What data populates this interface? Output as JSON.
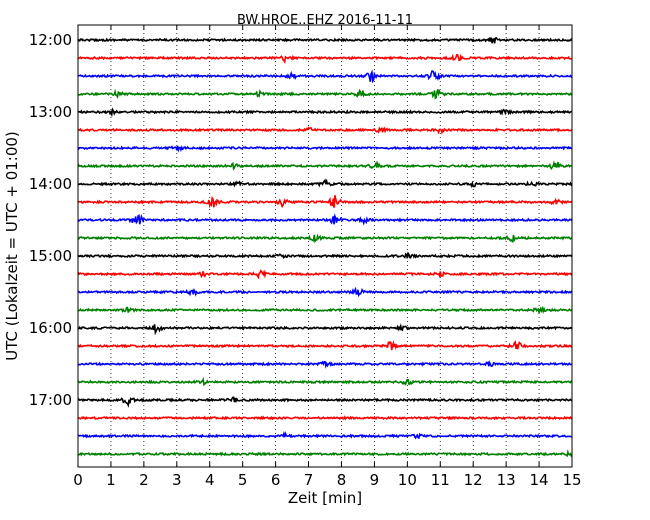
{
  "chart_data": {
    "type": "line",
    "title": "BW.HROE..EHZ 2016-11-11",
    "xlabel": "Zeit  [min]",
    "ylabel": "UTC (Lokalzeit = UTC + 01:00)",
    "xlim": [
      0,
      15
    ],
    "x_ticks": [
      "0",
      "1",
      "2",
      "3",
      "4",
      "5",
      "6",
      "7",
      "8",
      "9",
      "10",
      "11",
      "12",
      "13",
      "14",
      "15"
    ],
    "y_ticks": [
      {
        "label": "12:00",
        "trace": 0
      },
      {
        "label": "13:00",
        "trace": 4
      },
      {
        "label": "14:00",
        "trace": 8
      },
      {
        "label": "15:00",
        "trace": 12
      },
      {
        "label": "16:00",
        "trace": 16
      },
      {
        "label": "17:00",
        "trace": 20
      }
    ],
    "grid": "vertical dotted",
    "trace_interval_minutes": 15,
    "colors": [
      "#000000",
      "#ff0000",
      "#0000ff",
      "#008000"
    ],
    "series": [
      {
        "start": "12:00",
        "color": "#000000",
        "bursts": [
          [
            12.6,
            0.5
          ]
        ]
      },
      {
        "start": "12:15",
        "color": "#ff0000",
        "bursts": [
          [
            6.3,
            0.5
          ],
          [
            11.5,
            0.4
          ]
        ]
      },
      {
        "start": "12:30",
        "color": "#0000ff",
        "bursts": [
          [
            8.9,
            0.9
          ],
          [
            10.8,
            0.8
          ],
          [
            6.5,
            0.3
          ]
        ]
      },
      {
        "start": "12:45",
        "color": "#008000",
        "bursts": [
          [
            1.2,
            0.4
          ],
          [
            5.5,
            0.4
          ],
          [
            8.6,
            0.6
          ],
          [
            10.9,
            0.7
          ]
        ]
      },
      {
        "start": "13:00",
        "color": "#000000",
        "bursts": [
          [
            1.0,
            0.3
          ],
          [
            13.0,
            0.3
          ]
        ]
      },
      {
        "start": "13:15",
        "color": "#ff0000",
        "bursts": [
          [
            7.0,
            0.3
          ],
          [
            9.2,
            0.3
          ],
          [
            11.0,
            0.3
          ]
        ]
      },
      {
        "start": "13:30",
        "color": "#0000ff",
        "bursts": [
          [
            3.0,
            0.3
          ]
        ]
      },
      {
        "start": "13:45",
        "color": "#008000",
        "bursts": [
          [
            4.7,
            0.4
          ],
          [
            9.0,
            0.4
          ],
          [
            14.5,
            0.7
          ]
        ]
      },
      {
        "start": "14:00",
        "color": "#000000",
        "bursts": [
          [
            4.9,
            0.4
          ],
          [
            7.5,
            0.5
          ],
          [
            12.0,
            0.3
          ],
          [
            13.8,
            0.3
          ]
        ]
      },
      {
        "start": "14:15",
        "color": "#ff0000",
        "bursts": [
          [
            4.1,
            1.0
          ],
          [
            6.2,
            0.6
          ],
          [
            7.8,
            1.0
          ],
          [
            14.5,
            0.3
          ]
        ]
      },
      {
        "start": "14:30",
        "color": "#0000ff",
        "bursts": [
          [
            1.8,
            1.0
          ],
          [
            7.8,
            0.6
          ],
          [
            8.7,
            0.4
          ]
        ]
      },
      {
        "start": "14:45",
        "color": "#008000",
        "bursts": [
          [
            7.2,
            0.4
          ],
          [
            13.2,
            0.6
          ]
        ]
      },
      {
        "start": "15:00",
        "color": "#000000",
        "bursts": [
          [
            6.2,
            0.3
          ],
          [
            10.0,
            0.3
          ]
        ]
      },
      {
        "start": "15:15",
        "color": "#ff0000",
        "bursts": [
          [
            5.5,
            0.8
          ],
          [
            3.8,
            0.3
          ],
          [
            11.0,
            0.3
          ]
        ]
      },
      {
        "start": "15:30",
        "color": "#0000ff",
        "bursts": [
          [
            3.5,
            0.4
          ],
          [
            8.5,
            0.5
          ]
        ]
      },
      {
        "start": "15:45",
        "color": "#008000",
        "bursts": [
          [
            1.5,
            0.3
          ],
          [
            14.0,
            0.3
          ]
        ]
      },
      {
        "start": "16:00",
        "color": "#000000",
        "bursts": [
          [
            2.4,
            0.7
          ],
          [
            9.9,
            0.3
          ]
        ]
      },
      {
        "start": "16:15",
        "color": "#ff0000",
        "bursts": [
          [
            9.5,
            0.6
          ],
          [
            13.3,
            0.7
          ]
        ]
      },
      {
        "start": "16:30",
        "color": "#0000ff",
        "bursts": [
          [
            7.5,
            0.3
          ],
          [
            12.5,
            0.3
          ]
        ]
      },
      {
        "start": "16:45",
        "color": "#008000",
        "bursts": [
          [
            3.8,
            0.3
          ],
          [
            10.0,
            0.3
          ]
        ]
      },
      {
        "start": "17:00",
        "color": "#000000",
        "bursts": [
          [
            1.5,
            0.8
          ],
          [
            4.7,
            0.3
          ]
        ]
      },
      {
        "start": "17:15",
        "color": "#ff0000",
        "bursts": []
      },
      {
        "start": "17:30",
        "color": "#0000ff",
        "bursts": [
          [
            6.3,
            0.3
          ],
          [
            10.3,
            0.3
          ]
        ]
      },
      {
        "start": "17:45",
        "color": "#008000",
        "bursts": [
          [
            14.9,
            0.3
          ]
        ]
      }
    ]
  }
}
